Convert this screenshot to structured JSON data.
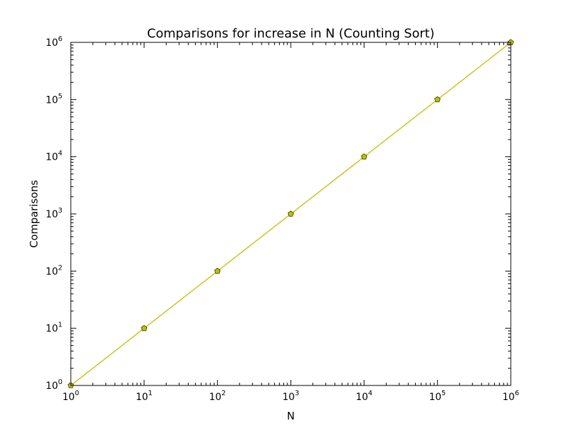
{
  "chart_data": {
    "type": "line",
    "title": "Comparisons for increase in N (Counting Sort)",
    "xlabel": "N",
    "ylabel": "Comparisons",
    "xscale": "log",
    "yscale": "log",
    "xlim": [
      1,
      1000000
    ],
    "ylim": [
      1,
      1000000
    ],
    "grid": false,
    "legend": "none",
    "x_ticks": [
      {
        "value": 1,
        "base": "10",
        "exp": "0"
      },
      {
        "value": 10,
        "base": "10",
        "exp": "1"
      },
      {
        "value": 100,
        "base": "10",
        "exp": "2"
      },
      {
        "value": 1000,
        "base": "10",
        "exp": "3"
      },
      {
        "value": 10000,
        "base": "10",
        "exp": "4"
      },
      {
        "value": 100000,
        "base": "10",
        "exp": "5"
      },
      {
        "value": 1000000,
        "base": "10",
        "exp": "6"
      }
    ],
    "y_ticks": [
      {
        "value": 1,
        "base": "10",
        "exp": "0"
      },
      {
        "value": 10,
        "base": "10",
        "exp": "1"
      },
      {
        "value": 100,
        "base": "10",
        "exp": "2"
      },
      {
        "value": 1000,
        "base": "10",
        "exp": "3"
      },
      {
        "value": 10000,
        "base": "10",
        "exp": "4"
      },
      {
        "value": 100000,
        "base": "10",
        "exp": "5"
      },
      {
        "value": 1000000,
        "base": "10",
        "exp": "6"
      }
    ],
    "series": [
      {
        "color": "#bfbf00",
        "marker": "pentagon",
        "x": [
          1,
          10,
          100,
          1000,
          10000,
          100000,
          1000000
        ],
        "y": [
          1,
          10,
          100,
          1000,
          10000,
          100000,
          1000000
        ]
      }
    ]
  }
}
